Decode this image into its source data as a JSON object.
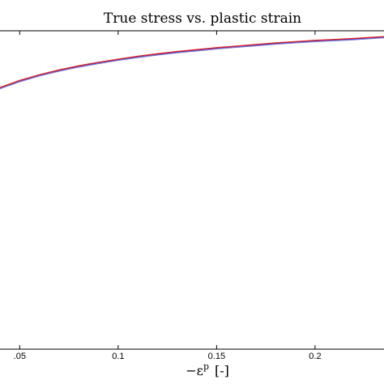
{
  "chart_data": {
    "type": "line",
    "title": "True stress vs. plastic strain",
    "xlabel": "−ε",
    "xlabel_superscript": "p",
    "xlabel_bracket": "[-]",
    "ylabel": "",
    "xlim": [
      0.04,
      0.235
    ],
    "ylim": [
      0,
      1
    ],
    "x_ticks": [
      0.05,
      0.1,
      0.15,
      0.2
    ],
    "x_tick_labels": [
      ".05",
      "0.1",
      "0.15",
      "0.2"
    ],
    "grid": false,
    "series": [
      {
        "color": "#2020ff",
        "x": [
          0.04,
          0.05,
          0.06,
          0.07,
          0.08,
          0.09,
          0.1,
          0.11,
          0.12,
          0.13,
          0.14,
          0.15,
          0.16,
          0.17,
          0.18,
          0.19,
          0.2,
          0.21,
          0.22,
          0.23,
          0.235
        ],
        "y": [
          0.82,
          0.842,
          0.86,
          0.875,
          0.888,
          0.899,
          0.909,
          0.918,
          0.926,
          0.933,
          0.939,
          0.945,
          0.95,
          0.955,
          0.96,
          0.964,
          0.968,
          0.971,
          0.974,
          0.978,
          0.98
        ]
      },
      {
        "color": "#e02020",
        "x": [
          0.04,
          0.05,
          0.06,
          0.07,
          0.08,
          0.09,
          0.1,
          0.11,
          0.12,
          0.13,
          0.14,
          0.15,
          0.16,
          0.17,
          0.18,
          0.19,
          0.2,
          0.21,
          0.22,
          0.23,
          0.235
        ],
        "y": [
          0.822,
          0.844,
          0.862,
          0.877,
          0.89,
          0.901,
          0.911,
          0.92,
          0.928,
          0.935,
          0.941,
          0.947,
          0.952,
          0.957,
          0.962,
          0.966,
          0.97,
          0.973,
          0.976,
          0.98,
          0.982
        ]
      },
      {
        "color": "#7878c8",
        "x": [
          0.04,
          0.05,
          0.06,
          0.07,
          0.08,
          0.09,
          0.1,
          0.11,
          0.12,
          0.13,
          0.14,
          0.15,
          0.16,
          0.17,
          0.18,
          0.19,
          0.2,
          0.21,
          0.22,
          0.23,
          0.235
        ],
        "y": [
          0.818,
          0.84,
          0.858,
          0.873,
          0.886,
          0.897,
          0.907,
          0.916,
          0.924,
          0.931,
          0.937,
          0.943,
          0.948,
          0.953,
          0.958,
          0.962,
          0.966,
          0.969,
          0.972,
          0.976,
          0.978
        ]
      }
    ]
  }
}
